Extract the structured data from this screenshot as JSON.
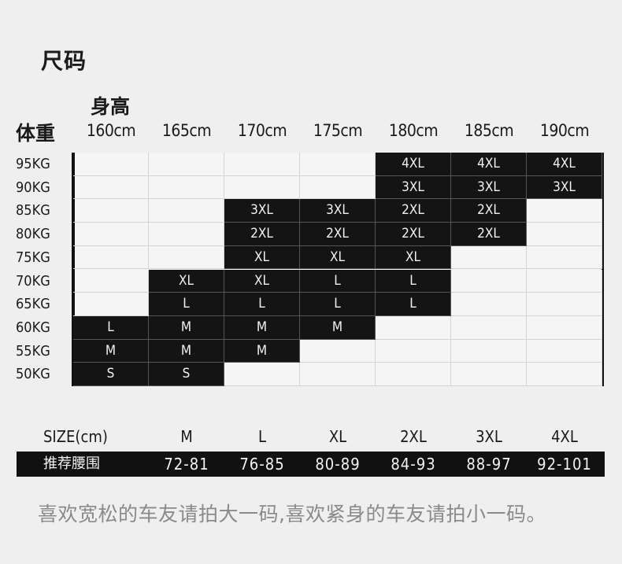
{
  "title": "尺码",
  "height_axis_label": "身高",
  "weight_axis_label": "体重",
  "heights": [
    "160cm",
    "165cm",
    "170cm",
    "175cm",
    "180cm",
    "185cm",
    "190cm"
  ],
  "weights": [
    "95KG",
    "90KG",
    "85KG",
    "80KG",
    "75KG",
    "70KG",
    "65KG",
    "60KG",
    "55KG",
    "50KG"
  ],
  "size_grid": [
    [
      "",
      "",
      "",
      "",
      "4XL",
      "4XL",
      "4XL"
    ],
    [
      "",
      "",
      "",
      "",
      "3XL",
      "3XL",
      "3XL"
    ],
    [
      "",
      "",
      "3XL",
      "3XL",
      "2XL",
      "2XL",
      ""
    ],
    [
      "",
      "",
      "2XL",
      "2XL",
      "2XL",
      "2XL",
      ""
    ],
    [
      "",
      "",
      "XL",
      "XL",
      "XL",
      "",
      ""
    ],
    [
      "",
      "XL",
      "XL",
      "L",
      "L",
      "",
      ""
    ],
    [
      "",
      "L",
      "L",
      "L",
      "L",
      "",
      ""
    ],
    [
      "L",
      "M",
      "M",
      "M",
      "",
      "",
      ""
    ],
    [
      "M",
      "M",
      "M",
      "",
      "",
      "",
      ""
    ],
    [
      "S",
      "S",
      "",
      "",
      "",
      "",
      ""
    ]
  ],
  "waist_table": {
    "size_header": "SIZE(cm)",
    "sizes": [
      "M",
      "L",
      "XL",
      "2XL",
      "3XL",
      "4XL"
    ],
    "waist_label": "推荐腰围",
    "waist_ranges": [
      "72-81",
      "76-85",
      "80-89",
      "84-93",
      "88-97",
      "92-101"
    ]
  },
  "footnote": "喜欢宽松的车友请拍大一码,喜欢紧身的车友请拍小一码。",
  "colors": {
    "background": "#efefef",
    "dark_cell": "#141414",
    "light_cell": "#f5f5f5",
    "footnote": "#8a8a8a"
  }
}
